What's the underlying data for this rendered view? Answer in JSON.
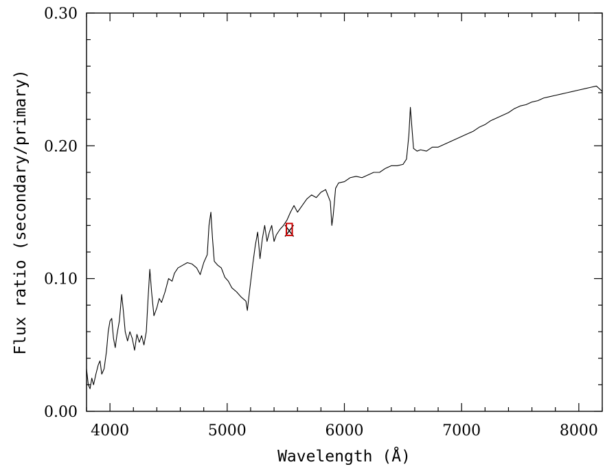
{
  "chart_data": {
    "type": "line",
    "title": "",
    "xlabel": "Wavelength (Å)",
    "ylabel": "Flux ratio (secondary/primary)",
    "xlim": [
      3800,
      8200
    ],
    "ylim": [
      0.0,
      0.3
    ],
    "x_ticks": [
      4000,
      5000,
      6000,
      7000,
      8000
    ],
    "x_tick_labels": [
      "4000",
      "5000",
      "6000",
      "7000",
      "8000"
    ],
    "y_ticks": [
      0.0,
      0.1,
      0.2,
      0.3
    ],
    "y_tick_labels": [
      "0.00",
      "0.10",
      "0.20",
      "0.30"
    ],
    "grid": false,
    "series": [
      {
        "color": "#000000",
        "points": [
          [
            3800,
            0.032
          ],
          [
            3815,
            0.02
          ],
          [
            3830,
            0.017
          ],
          [
            3845,
            0.025
          ],
          [
            3860,
            0.02
          ],
          [
            3880,
            0.028
          ],
          [
            3900,
            0.035
          ],
          [
            3915,
            0.038
          ],
          [
            3930,
            0.028
          ],
          [
            3950,
            0.032
          ],
          [
            3970,
            0.045
          ],
          [
            3985,
            0.06
          ],
          [
            4000,
            0.068
          ],
          [
            4015,
            0.07
          ],
          [
            4030,
            0.055
          ],
          [
            4045,
            0.048
          ],
          [
            4060,
            0.058
          ],
          [
            4080,
            0.068
          ],
          [
            4100,
            0.088
          ],
          [
            4115,
            0.075
          ],
          [
            4130,
            0.06
          ],
          [
            4150,
            0.053
          ],
          [
            4170,
            0.06
          ],
          [
            4190,
            0.055
          ],
          [
            4210,
            0.046
          ],
          [
            4230,
            0.058
          ],
          [
            4250,
            0.052
          ],
          [
            4270,
            0.057
          ],
          [
            4290,
            0.05
          ],
          [
            4310,
            0.06
          ],
          [
            4325,
            0.085
          ],
          [
            4340,
            0.107
          ],
          [
            4355,
            0.09
          ],
          [
            4375,
            0.072
          ],
          [
            4400,
            0.078
          ],
          [
            4420,
            0.085
          ],
          [
            4440,
            0.082
          ],
          [
            4470,
            0.09
          ],
          [
            4500,
            0.1
          ],
          [
            4530,
            0.098
          ],
          [
            4550,
            0.104
          ],
          [
            4580,
            0.108
          ],
          [
            4620,
            0.11
          ],
          [
            4660,
            0.112
          ],
          [
            4700,
            0.111
          ],
          [
            4740,
            0.108
          ],
          [
            4770,
            0.103
          ],
          [
            4800,
            0.112
          ],
          [
            4830,
            0.118
          ],
          [
            4845,
            0.14
          ],
          [
            4861,
            0.15
          ],
          [
            4875,
            0.13
          ],
          [
            4890,
            0.113
          ],
          [
            4920,
            0.11
          ],
          [
            4950,
            0.108
          ],
          [
            4980,
            0.101
          ],
          [
            5010,
            0.098
          ],
          [
            5040,
            0.093
          ],
          [
            5080,
            0.09
          ],
          [
            5120,
            0.086
          ],
          [
            5160,
            0.083
          ],
          [
            5172,
            0.076
          ],
          [
            5190,
            0.09
          ],
          [
            5220,
            0.112
          ],
          [
            5240,
            0.125
          ],
          [
            5260,
            0.135
          ],
          [
            5280,
            0.115
          ],
          [
            5300,
            0.13
          ],
          [
            5320,
            0.14
          ],
          [
            5340,
            0.128
          ],
          [
            5360,
            0.135
          ],
          [
            5380,
            0.14
          ],
          [
            5400,
            0.128
          ],
          [
            5420,
            0.133
          ],
          [
            5450,
            0.137
          ],
          [
            5480,
            0.14
          ],
          [
            5510,
            0.144
          ],
          [
            5540,
            0.15
          ],
          [
            5570,
            0.155
          ],
          [
            5600,
            0.15
          ],
          [
            5640,
            0.155
          ],
          [
            5680,
            0.16
          ],
          [
            5720,
            0.163
          ],
          [
            5760,
            0.161
          ],
          [
            5800,
            0.165
          ],
          [
            5840,
            0.167
          ],
          [
            5880,
            0.158
          ],
          [
            5893,
            0.14
          ],
          [
            5905,
            0.148
          ],
          [
            5925,
            0.168
          ],
          [
            5950,
            0.172
          ],
          [
            6000,
            0.173
          ],
          [
            6050,
            0.176
          ],
          [
            6100,
            0.177
          ],
          [
            6150,
            0.176
          ],
          [
            6200,
            0.178
          ],
          [
            6250,
            0.18
          ],
          [
            6300,
            0.18
          ],
          [
            6350,
            0.183
          ],
          [
            6400,
            0.185
          ],
          [
            6450,
            0.185
          ],
          [
            6500,
            0.186
          ],
          [
            6530,
            0.19
          ],
          [
            6550,
            0.208
          ],
          [
            6563,
            0.229
          ],
          [
            6575,
            0.215
          ],
          [
            6590,
            0.198
          ],
          [
            6620,
            0.196
          ],
          [
            6650,
            0.197
          ],
          [
            6700,
            0.196
          ],
          [
            6750,
            0.199
          ],
          [
            6800,
            0.199
          ],
          [
            6850,
            0.201
          ],
          [
            6900,
            0.203
          ],
          [
            6950,
            0.205
          ],
          [
            7000,
            0.207
          ],
          [
            7050,
            0.209
          ],
          [
            7100,
            0.211
          ],
          [
            7150,
            0.214
          ],
          [
            7200,
            0.216
          ],
          [
            7250,
            0.219
          ],
          [
            7300,
            0.221
          ],
          [
            7350,
            0.223
          ],
          [
            7400,
            0.225
          ],
          [
            7450,
            0.228
          ],
          [
            7500,
            0.23
          ],
          [
            7550,
            0.231
          ],
          [
            7600,
            0.233
          ],
          [
            7650,
            0.234
          ],
          [
            7700,
            0.236
          ],
          [
            7750,
            0.237
          ],
          [
            7800,
            0.238
          ],
          [
            7850,
            0.239
          ],
          [
            7900,
            0.24
          ],
          [
            7950,
            0.241
          ],
          [
            8000,
            0.242
          ],
          [
            8050,
            0.243
          ],
          [
            8100,
            0.244
          ],
          [
            8150,
            0.245
          ],
          [
            8200,
            0.241
          ]
        ]
      }
    ],
    "marker": {
      "type": "square-cross",
      "x": 5530,
      "y": 0.137,
      "dx": 50,
      "dy": 0.0045,
      "color": "#cc0000",
      "cross_color": "#000000"
    }
  }
}
